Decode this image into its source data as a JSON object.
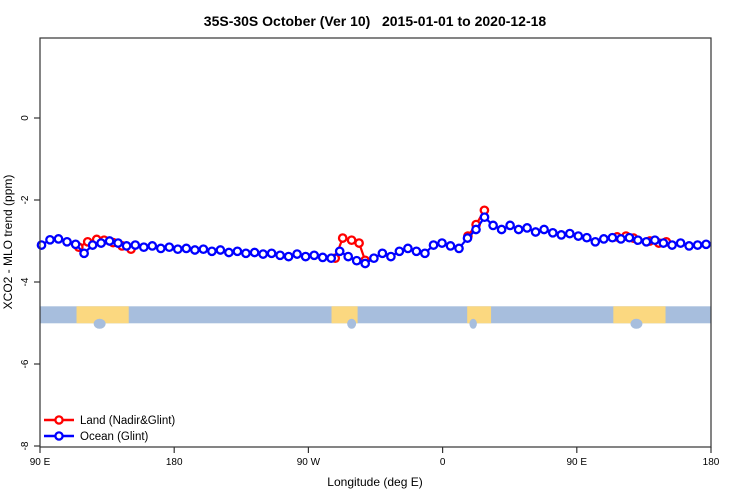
{
  "title": "35S-30S October (Ver 10)   2015-01-01 to 2020-12-18",
  "axes": {
    "x_label": "Longitude (deg E)",
    "y_label": "XCO2 - MLO trend (ppm)",
    "x_ticks": [
      {
        "deg": 90,
        "label": "90 E"
      },
      {
        "deg": 180,
        "label": "180"
      },
      {
        "deg": 270,
        "label": "90 W"
      },
      {
        "deg": 360,
        "label": "0"
      },
      {
        "deg": 450,
        "label": "90 E"
      },
      {
        "deg": 540,
        "label": "180"
      }
    ],
    "y_ticks": [
      {
        "value": 0,
        "label": "0"
      },
      {
        "value": -2,
        "label": "-2"
      },
      {
        "value": -4,
        "label": "-4"
      },
      {
        "value": -6,
        "label": "-6"
      },
      {
        "value": -8,
        "label": "-8"
      }
    ],
    "x_range_deg": [
      90,
      540
    ],
    "y_range_ppm": [
      -8.2,
      2.0
    ],
    "grid": false
  },
  "legend": {
    "position": "bottom-left",
    "items": [
      {
        "label": "Land (Nadir&Glint)",
        "color": "#ff0000"
      },
      {
        "label": "Ocean (Glint)",
        "color": "#0000ff"
      }
    ]
  },
  "map_band": {
    "ocean_color": "#a7bedd",
    "land_color": "#fbd880",
    "y_center_ppm": -4.8,
    "land_segments_deg": [
      [
        114.5,
        149.5
      ],
      [
        285.5,
        303.0
      ],
      [
        376.5,
        392.5
      ],
      [
        474.5,
        509.5
      ]
    ],
    "coast_notches_deg": [
      [
        126,
        134
      ],
      [
        296,
        302
      ],
      [
        378,
        383
      ],
      [
        486,
        494
      ]
    ]
  },
  "chart_data": {
    "type": "line-scatter",
    "title": "35S-30S October (Ver 10)   2015-01-01 to 2020-12-18",
    "xlabel": "Longitude (deg E)",
    "ylabel": "XCO2 - MLO trend (ppm)",
    "xlim_deg": [
      90,
      540
    ],
    "ylim_ppm": [
      -8.2,
      2.0
    ],
    "marker": "open-circle",
    "series": [
      {
        "name": "Land (Nadir&Glint)",
        "color": "#ff0000",
        "points": [
          [
            116,
            -3.15
          ],
          [
            122,
            -3.02
          ],
          [
            128,
            -2.96
          ],
          [
            133,
            -2.98
          ],
          [
            139,
            -3.04
          ],
          [
            145,
            -3.12
          ],
          [
            151,
            -3.2
          ],
          [
            288,
            -3.42
          ],
          [
            293,
            -2.93
          ],
          [
            299,
            -2.98
          ],
          [
            304,
            -3.05
          ],
          [
            308,
            -3.47
          ],
          [
            377,
            -2.88
          ],
          [
            382.5,
            -2.6
          ],
          [
            388,
            -2.25
          ],
          [
            477,
            -2.9
          ],
          [
            483,
            -2.88
          ],
          [
            488,
            -2.93
          ],
          [
            499,
            -3.0
          ],
          [
            505,
            -3.05
          ],
          [
            510,
            -3.02
          ]
        ]
      },
      {
        "name": "Ocean (Glint)",
        "color": "#0000ff",
        "points": [
          [
            91.0,
            -3.1
          ],
          [
            96.7,
            -2.97
          ],
          [
            102.4,
            -2.95
          ],
          [
            108.1,
            -3.02
          ],
          [
            113.9,
            -3.08
          ],
          [
            119.6,
            -3.3
          ],
          [
            125.3,
            -3.1
          ],
          [
            131.0,
            -3.05
          ],
          [
            136.7,
            -3.0
          ],
          [
            142.4,
            -3.05
          ],
          [
            148.1,
            -3.12
          ],
          [
            153.9,
            -3.1
          ],
          [
            159.6,
            -3.15
          ],
          [
            165.3,
            -3.12
          ],
          [
            171.0,
            -3.18
          ],
          [
            176.7,
            -3.15
          ],
          [
            182.4,
            -3.2
          ],
          [
            188.1,
            -3.18
          ],
          [
            193.9,
            -3.22
          ],
          [
            199.6,
            -3.2
          ],
          [
            205.3,
            -3.25
          ],
          [
            211.0,
            -3.22
          ],
          [
            216.7,
            -3.28
          ],
          [
            222.4,
            -3.25
          ],
          [
            228.1,
            -3.3
          ],
          [
            233.9,
            -3.28
          ],
          [
            239.6,
            -3.32
          ],
          [
            245.3,
            -3.3
          ],
          [
            251.0,
            -3.35
          ],
          [
            256.7,
            -3.38
          ],
          [
            262.4,
            -3.32
          ],
          [
            268.1,
            -3.38
          ],
          [
            273.9,
            -3.35
          ],
          [
            279.6,
            -3.4
          ],
          [
            285.3,
            -3.42
          ],
          [
            291.0,
            -3.25
          ],
          [
            296.7,
            -3.38
          ],
          [
            302.4,
            -3.48
          ],
          [
            308.1,
            -3.55
          ],
          [
            313.9,
            -3.42
          ],
          [
            319.6,
            -3.3
          ],
          [
            325.3,
            -3.38
          ],
          [
            331.0,
            -3.25
          ],
          [
            336.7,
            -3.18
          ],
          [
            342.4,
            -3.25
          ],
          [
            348.1,
            -3.3
          ],
          [
            353.9,
            -3.1
          ],
          [
            359.6,
            -3.05
          ],
          [
            365.3,
            -3.12
          ],
          [
            371.0,
            -3.18
          ],
          [
            376.7,
            -2.93
          ],
          [
            382.4,
            -2.72
          ],
          [
            388.1,
            -2.42
          ],
          [
            393.9,
            -2.62
          ],
          [
            399.6,
            -2.72
          ],
          [
            405.3,
            -2.62
          ],
          [
            411.0,
            -2.72
          ],
          [
            416.7,
            -2.68
          ],
          [
            422.4,
            -2.78
          ],
          [
            428.1,
            -2.72
          ],
          [
            433.9,
            -2.8
          ],
          [
            439.6,
            -2.85
          ],
          [
            445.3,
            -2.82
          ],
          [
            451.0,
            -2.88
          ],
          [
            456.7,
            -2.92
          ],
          [
            462.4,
            -3.02
          ],
          [
            468.1,
            -2.95
          ],
          [
            473.9,
            -2.92
          ],
          [
            479.6,
            -2.95
          ],
          [
            485.3,
            -2.92
          ],
          [
            491.0,
            -2.98
          ],
          [
            496.7,
            -3.02
          ],
          [
            502.4,
            -2.98
          ],
          [
            508.1,
            -3.05
          ],
          [
            513.9,
            -3.1
          ],
          [
            519.6,
            -3.05
          ],
          [
            525.3,
            -3.12
          ],
          [
            531.0,
            -3.1
          ],
          [
            536.7,
            -3.08
          ]
        ]
      }
    ]
  }
}
